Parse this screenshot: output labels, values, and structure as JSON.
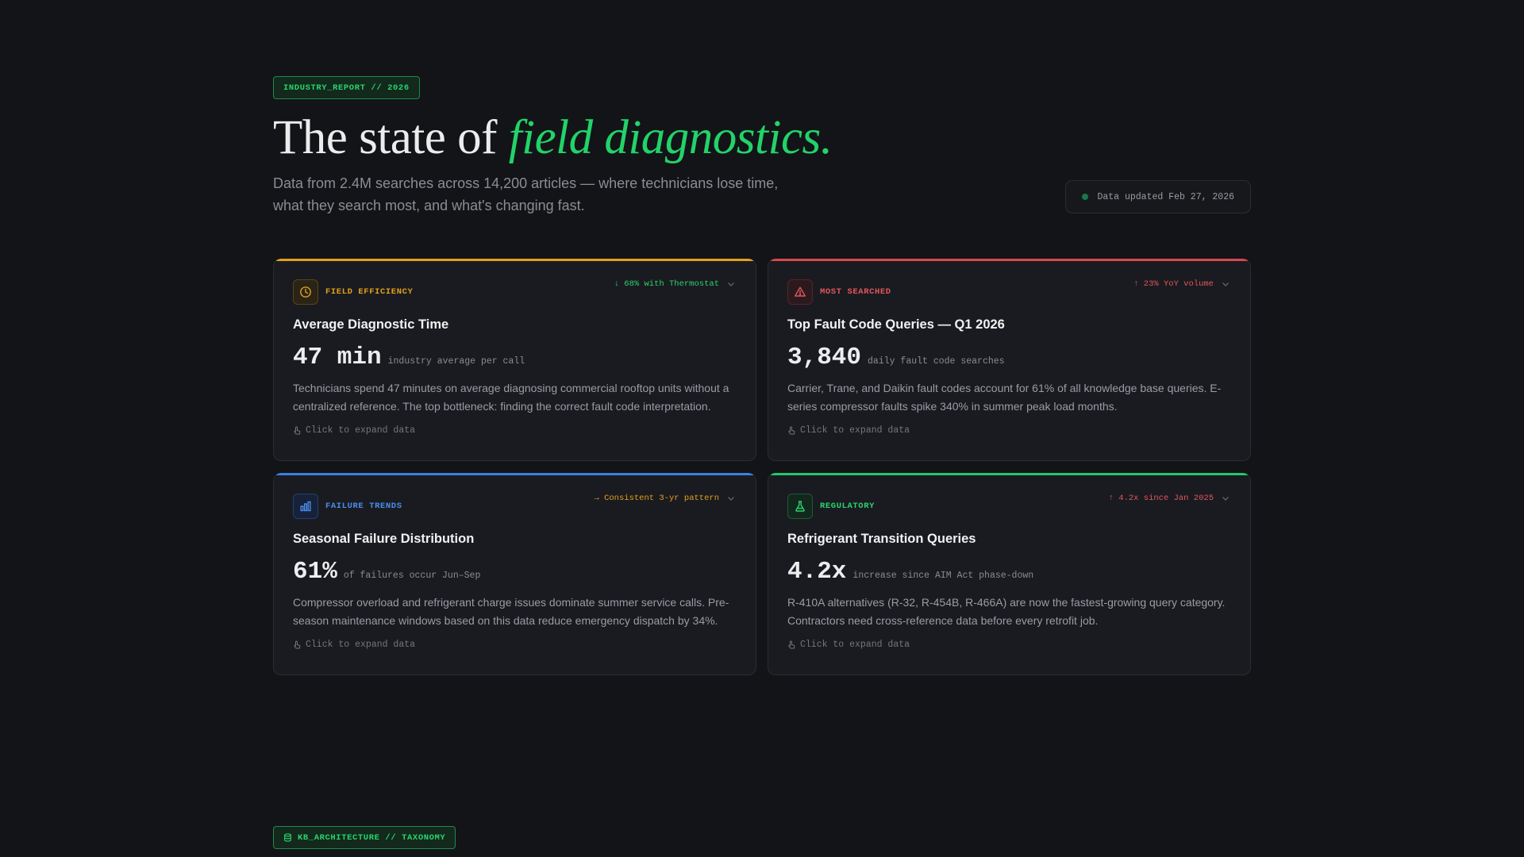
{
  "header": {
    "badge": "INDUSTRY_REPORT // 2026",
    "title_plain": "The state of ",
    "title_accent": "field diagnostics.",
    "subtitle": "Data from 2.4M searches across 14,200 articles — where technicians lose time, what they search most, and what's changing fast.",
    "updated": "Data updated Feb 27, 2026"
  },
  "expand_label": "Click to expand data",
  "cards": [
    {
      "category": "FIELD EFFICIENCY",
      "icon": "clock-icon",
      "trend": "↓ 68% with Thermostat",
      "title": "Average Diagnostic Time",
      "metric": "47 min",
      "metric_label": "industry average per call",
      "description": "Technicians spend 47 minutes on average diagnosing commercial rooftop units without a centralized reference. The top bottleneck: finding the correct fault code interpretation."
    },
    {
      "category": "MOST SEARCHED",
      "icon": "warning-triangle-icon",
      "trend": "↑ 23% YoY volume",
      "title": "Top Fault Code Queries — Q1 2026",
      "metric": "3,840",
      "metric_label": "daily fault code searches",
      "description": "Carrier, Trane, and Daikin fault codes account for 61% of all knowledge base queries. E-series compressor faults spike 340% in summer peak load months."
    },
    {
      "category": "FAILURE TRENDS",
      "icon": "bar-chart-icon",
      "trend": "→ Consistent 3-yr pattern",
      "title": "Seasonal Failure Distribution",
      "metric": "61%",
      "metric_label": "of failures occur Jun–Sep",
      "description": "Compressor overload and refrigerant charge issues dominate summer service calls. Pre-season maintenance windows based on this data reduce emergency dispatch by 34%."
    },
    {
      "category": "REGULATORY",
      "icon": "flask-icon",
      "trend": "↑ 4.2x since Jan 2025",
      "title": "Refrigerant Transition Queries",
      "metric": "4.2x",
      "metric_label": "increase since AIM Act phase-down",
      "description": "R-410A alternatives (R-32, R-454B, R-466A) are now the fastest-growing query category. Contractors need cross-reference data before every retrofit job."
    }
  ],
  "section_badge": "KB_ARCHITECTURE // TAXONOMY",
  "colors": {
    "background": "#131418",
    "accent_green": "#22d36a",
    "amber": "#e3a01c",
    "red": "#e0565d",
    "blue": "#4b8dee"
  }
}
